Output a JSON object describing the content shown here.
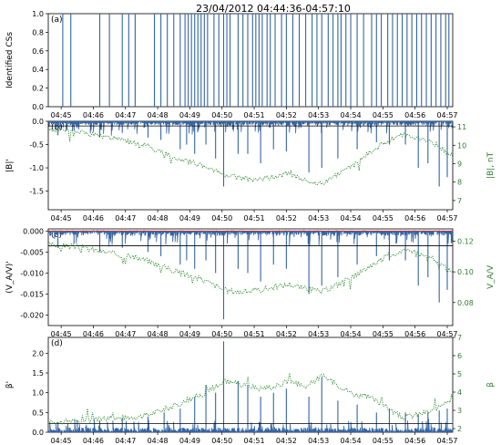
{
  "figure": {
    "title": "23/04/2012 04:44:36-04:57:10",
    "time_ticks": [
      "04:45",
      "04:46",
      "04:47",
      "04:48",
      "04:49",
      "04:50",
      "04:51",
      "04:52",
      "04:53",
      "04:54",
      "04:55",
      "04:56",
      "04:57"
    ]
  },
  "colors": {
    "primary": "#3465a4",
    "secondary": "#2e8b2e",
    "threshold": "#000000",
    "threshold_alt": "#cc3333",
    "magenta": "#cc33cc"
  },
  "chart_data": [
    {
      "type": "bar",
      "panel_label": "(a)",
      "ylabel": "Identified CSs",
      "ylim": [
        0,
        1.0
      ],
      "yticks": [
        "0.0",
        "0.2",
        "0.4",
        "0.6",
        "0.8",
        "1.0"
      ],
      "xlim_minutes": [
        0.0,
        12.57
      ],
      "cs_times": [
        0.45,
        0.7,
        1.6,
        1.9,
        2.3,
        2.5,
        2.7,
        3.3,
        3.5,
        3.7,
        3.9,
        4.1,
        4.25,
        4.35,
        4.45,
        4.55,
        4.65,
        4.75,
        4.85,
        4.95,
        5.15,
        5.3,
        5.45,
        5.55,
        5.65,
        5.9,
        6.05,
        6.2,
        6.35,
        6.45,
        6.55,
        6.65,
        6.8,
        6.9,
        7.05,
        7.25,
        7.4,
        7.6,
        7.8,
        8.0,
        8.2,
        8.35,
        8.5,
        8.7,
        8.85,
        9.0,
        9.1,
        9.25,
        9.4,
        9.6,
        9.8,
        10.05,
        10.2,
        10.35,
        10.55,
        10.7,
        10.85,
        11.0,
        11.15,
        11.3,
        11.45,
        11.6,
        11.75,
        11.9,
        12.05,
        12.2,
        12.35,
        12.45
      ]
    },
    {
      "type": "line",
      "panel_label": "(b)",
      "ylabel": "|B|'",
      "ylabel_right": "|B|, nT",
      "ylim": [
        -1.9,
        0.0
      ],
      "yticks": [
        "0.0",
        "-0.5",
        "-1.0",
        "-1.5"
      ],
      "ylim_right": [
        6.5,
        11.3
      ],
      "yticks_right": [
        "7",
        "8",
        "9",
        "10",
        "11"
      ],
      "threshold": -0.1,
      "base_curve": [
        [
          0.0,
          10.9
        ],
        [
          1.0,
          10.7
        ],
        [
          2.0,
          10.4
        ],
        [
          3.0,
          10.0
        ],
        [
          4.0,
          9.3
        ],
        [
          4.8,
          8.9
        ],
        [
          5.5,
          8.4
        ],
        [
          6.0,
          8.2
        ],
        [
          6.5,
          8.1
        ],
        [
          7.0,
          8.3
        ],
        [
          7.5,
          8.5
        ],
        [
          8.0,
          8.1
        ],
        [
          8.5,
          7.9
        ],
        [
          9.0,
          8.4
        ],
        [
          9.5,
          8.9
        ],
        [
          10.0,
          9.6
        ],
        [
          10.5,
          10.2
        ],
        [
          11.0,
          10.6
        ],
        [
          11.5,
          10.4
        ],
        [
          12.0,
          10.1
        ],
        [
          12.57,
          9.4
        ]
      ],
      "spikes": [
        [
          0.3,
          -0.3
        ],
        [
          0.8,
          -0.2
        ],
        [
          1.6,
          -0.35
        ],
        [
          2.3,
          -0.25
        ],
        [
          3.1,
          -0.35
        ],
        [
          3.5,
          -0.4
        ],
        [
          4.1,
          -0.6
        ],
        [
          4.3,
          -0.5
        ],
        [
          4.55,
          -0.7
        ],
        [
          4.9,
          -0.5
        ],
        [
          5.2,
          -0.8
        ],
        [
          5.45,
          -1.4
        ],
        [
          5.9,
          -0.7
        ],
        [
          6.2,
          -0.7
        ],
        [
          6.6,
          -0.9
        ],
        [
          7.0,
          -0.6
        ],
        [
          7.4,
          -0.65
        ],
        [
          8.1,
          -1.1
        ],
        [
          8.5,
          -1.0
        ],
        [
          9.0,
          -0.8
        ],
        [
          9.6,
          -0.6
        ],
        [
          10.2,
          -0.45
        ],
        [
          10.6,
          -0.5
        ],
        [
          11.1,
          -0.5
        ],
        [
          11.5,
          -1.0
        ],
        [
          11.8,
          -0.9
        ],
        [
          12.15,
          -1.4
        ],
        [
          12.4,
          -1.2
        ]
      ]
    },
    {
      "type": "line",
      "panel_label": "(c)",
      "ylabel": "(V_A/V)'",
      "ylabel_right": "V_A/V",
      "ylim": [
        -0.0225,
        0.0005
      ],
      "yticks": [
        "0.000",
        "-0.005",
        "-0.010",
        "-0.015",
        "-0.020"
      ],
      "ylim_right": [
        0.065,
        0.128
      ],
      "yticks_right": [
        "0.08",
        "0.10",
        "0.12"
      ],
      "threshold": -0.0035,
      "base_curve": [
        [
          0.0,
          0.118
        ],
        [
          1.0,
          0.116
        ],
        [
          2.0,
          0.112
        ],
        [
          3.0,
          0.108
        ],
        [
          4.0,
          0.1
        ],
        [
          4.8,
          0.095
        ],
        [
          5.5,
          0.088
        ],
        [
          6.0,
          0.087
        ],
        [
          6.5,
          0.088
        ],
        [
          7.0,
          0.09
        ],
        [
          7.5,
          0.092
        ],
        [
          8.0,
          0.089
        ],
        [
          8.5,
          0.087
        ],
        [
          9.0,
          0.092
        ],
        [
          9.5,
          0.097
        ],
        [
          10.0,
          0.104
        ],
        [
          10.5,
          0.11
        ],
        [
          11.0,
          0.114
        ],
        [
          11.5,
          0.112
        ],
        [
          12.0,
          0.108
        ],
        [
          12.57,
          0.099
        ]
      ],
      "spikes": [
        [
          0.3,
          -0.004
        ],
        [
          0.8,
          -0.003
        ],
        [
          1.6,
          -0.005
        ],
        [
          2.3,
          -0.004
        ],
        [
          3.1,
          -0.005
        ],
        [
          3.5,
          -0.006
        ],
        [
          4.1,
          -0.008
        ],
        [
          4.3,
          -0.007
        ],
        [
          4.55,
          -0.009
        ],
        [
          4.9,
          -0.007
        ],
        [
          5.2,
          -0.01
        ],
        [
          5.45,
          -0.021
        ],
        [
          5.9,
          -0.009
        ],
        [
          6.2,
          -0.01
        ],
        [
          6.6,
          -0.012
        ],
        [
          7.0,
          -0.008
        ],
        [
          7.4,
          -0.009
        ],
        [
          8.1,
          -0.015
        ],
        [
          8.5,
          -0.013
        ],
        [
          9.0,
          -0.011
        ],
        [
          9.6,
          -0.008
        ],
        [
          10.2,
          -0.006
        ],
        [
          10.6,
          -0.007
        ],
        [
          11.1,
          -0.007
        ],
        [
          11.5,
          -0.013
        ],
        [
          11.8,
          -0.011
        ],
        [
          12.15,
          -0.017
        ],
        [
          12.4,
          -0.014
        ]
      ]
    },
    {
      "type": "line",
      "panel_label": "(d)",
      "ylabel": "β'",
      "ylabel_right": "β",
      "ylim": [
        0.0,
        2.4
      ],
      "yticks": [
        "0.0",
        "0.5",
        "1.0",
        "1.5",
        "2.0"
      ],
      "ylim_right": [
        1.8,
        7.0
      ],
      "yticks_right": [
        "2",
        "3",
        "4",
        "5",
        "6",
        "7"
      ],
      "threshold": 0.22,
      "base_curve": [
        [
          0.0,
          2.35
        ],
        [
          1.0,
          2.4
        ],
        [
          2.0,
          2.55
        ],
        [
          3.0,
          2.7
        ],
        [
          4.0,
          3.3
        ],
        [
          4.8,
          3.9
        ],
        [
          5.5,
          4.6
        ],
        [
          6.0,
          4.4
        ],
        [
          6.5,
          4.2
        ],
        [
          7.0,
          4.3
        ],
        [
          7.5,
          4.6
        ],
        [
          8.0,
          4.3
        ],
        [
          8.5,
          4.9
        ],
        [
          9.0,
          4.4
        ],
        [
          9.5,
          3.9
        ],
        [
          10.0,
          3.7
        ],
        [
          10.5,
          3.2
        ],
        [
          11.0,
          2.6
        ],
        [
          11.5,
          2.8
        ],
        [
          12.0,
          3.0
        ],
        [
          12.57,
          3.6
        ]
      ],
      "spikes": [
        [
          0.3,
          0.25
        ],
        [
          0.9,
          0.3
        ],
        [
          1.6,
          0.3
        ],
        [
          2.3,
          0.35
        ],
        [
          3.1,
          0.4
        ],
        [
          3.6,
          0.5
        ],
        [
          4.1,
          0.6
        ],
        [
          4.55,
          0.9
        ],
        [
          4.9,
          1.2
        ],
        [
          5.2,
          1.0
        ],
        [
          5.45,
          2.3
        ],
        [
          5.9,
          1.3
        ],
        [
          6.2,
          1.2
        ],
        [
          6.6,
          0.9
        ],
        [
          7.0,
          1.0
        ],
        [
          7.4,
          1.1
        ],
        [
          8.1,
          0.9
        ],
        [
          8.5,
          1.4
        ],
        [
          9.0,
          0.8
        ],
        [
          9.6,
          0.7
        ],
        [
          10.2,
          0.5
        ],
        [
          10.6,
          0.6
        ],
        [
          11.1,
          0.5
        ],
        [
          11.5,
          0.45
        ],
        [
          11.8,
          0.5
        ],
        [
          12.15,
          0.55
        ],
        [
          12.4,
          0.6
        ]
      ]
    }
  ]
}
